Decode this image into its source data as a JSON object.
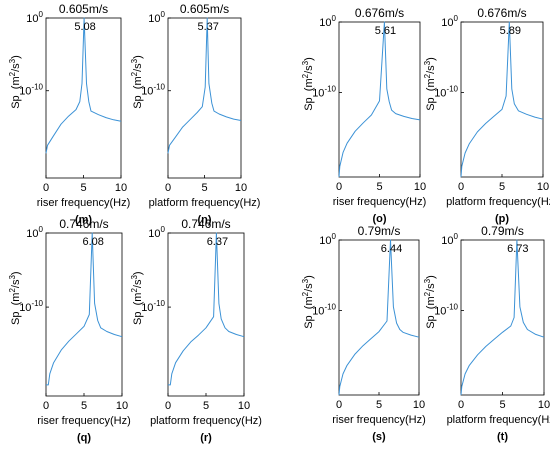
{
  "line_color": "#3c92d6",
  "ylabel_text": "Sp",
  "ylabel_unit_base": "(m",
  "ylabel_unit_num_sup": "2",
  "ylabel_unit_mid": "/s",
  "ylabel_unit_den_sup": "3",
  "ylabel_unit_close": ")",
  "chart_data": [
    {
      "panel": "m",
      "type": "line",
      "title": "0.605m/s",
      "peak_label": "5.08",
      "peak_x": 5.08,
      "xlabel": "riser frequency(Hz)",
      "caption": "(m)",
      "xlim": [
        0,
        10
      ],
      "xticks": [
        "0",
        "5",
        "10"
      ],
      "ylim_log10": [
        -22,
        0
      ],
      "yticks": [
        {
          "exp": 0,
          "base": "10",
          "sup": "0"
        },
        {
          "exp": -10,
          "base": "10",
          "sup": "-10"
        }
      ],
      "y_scale": "log",
      "x": [
        0,
        0.2,
        1,
        2,
        3,
        4,
        4.5,
        4.8,
        5.08,
        5.4,
        5.7,
        6,
        7,
        8,
        9,
        10
      ],
      "y_log10": [
        -18.6,
        -17.5,
        -16.2,
        -14.6,
        -13.5,
        -12.6,
        -11.5,
        -9,
        0,
        -9,
        -11.5,
        -12.8,
        -13.3,
        -13.7,
        -14,
        -14.2
      ]
    },
    {
      "panel": "n",
      "type": "line",
      "title": "0.605m/s",
      "peak_label": "5.37",
      "peak_x": 5.37,
      "xlabel": "platform frequency(Hz)",
      "caption": "(n)",
      "xlim": [
        0,
        10
      ],
      "xticks": [
        "0",
        "5",
        "10"
      ],
      "ylim_log10": [
        -22,
        0
      ],
      "yticks": [
        {
          "exp": 0,
          "base": "10",
          "sup": "0"
        },
        {
          "exp": -10,
          "base": "10",
          "sup": "-10"
        }
      ],
      "y_scale": "log",
      "x": [
        0,
        0.2,
        1,
        2,
        3,
        4,
        4.7,
        5.1,
        5.37,
        5.6,
        6,
        6.3,
        7,
        8,
        9,
        10
      ],
      "y_log10": [
        -18.6,
        -17.5,
        -16.4,
        -15,
        -14,
        -13,
        -12.2,
        -9.5,
        0,
        -9,
        -11.7,
        -12.8,
        -13.2,
        -13.6,
        -13.9,
        -14.1
      ]
    },
    {
      "panel": "o",
      "type": "line",
      "title": "0.676m/s",
      "peak_label": "5.61",
      "peak_x": 5.61,
      "xlabel": "riser frequency(Hz)",
      "caption": "(o)",
      "xlim": [
        0,
        10
      ],
      "xticks": [
        "0",
        "5",
        "10"
      ],
      "ylim_log10": [
        -22,
        0
      ],
      "yticks": [
        {
          "exp": 0,
          "base": "10",
          "sup": "0"
        },
        {
          "exp": -10,
          "base": "10",
          "sup": "-10"
        }
      ],
      "y_scale": "log",
      "x": [
        0,
        0.1,
        0.5,
        1,
        2,
        3,
        4,
        5,
        5.61,
        5.9,
        6.2,
        6.5,
        7,
        8,
        9,
        10
      ],
      "y_log10": [
        -22,
        -20.5,
        -18.5,
        -17.2,
        -15.5,
        -14.3,
        -13.2,
        -11.2,
        0,
        -9.5,
        -11.3,
        -12.5,
        -13,
        -13.4,
        -13.7,
        -13.9
      ]
    },
    {
      "panel": "p",
      "type": "line",
      "title": "0.676m/s",
      "peak_label": "5.89",
      "peak_x": 5.89,
      "xlabel": "platform frequency(Hz)",
      "caption": "(p)",
      "xlim": [
        0,
        10
      ],
      "xticks": [
        "0",
        "5",
        "10"
      ],
      "ylim_log10": [
        -22,
        0
      ],
      "yticks": [
        {
          "exp": 0,
          "base": "10",
          "sup": "0"
        },
        {
          "exp": -10,
          "base": "10",
          "sup": "-10"
        }
      ],
      "y_scale": "log",
      "x": [
        0,
        0.1,
        0.5,
        1,
        2,
        3,
        4,
        5,
        5.5,
        5.89,
        6.2,
        6.5,
        7,
        8,
        9,
        10
      ],
      "y_log10": [
        -22,
        -20.5,
        -18.6,
        -17.3,
        -15.6,
        -14.4,
        -13.4,
        -12.4,
        -10.5,
        0,
        -9.5,
        -11.6,
        -12.6,
        -13.1,
        -13.5,
        -13.8
      ]
    },
    {
      "panel": "q",
      "type": "line",
      "title": "0.746m/s",
      "peak_label": "6.08",
      "peak_x": 6.08,
      "xlabel": "riser frequency(Hz)",
      "caption": "(q)",
      "xlim": [
        0,
        10
      ],
      "xticks": [
        "0",
        "5",
        "10"
      ],
      "ylim_log10": [
        -22,
        0
      ],
      "yticks": [
        {
          "exp": 0,
          "base": "10",
          "sup": "0"
        },
        {
          "exp": -10,
          "base": "10",
          "sup": "-10"
        }
      ],
      "y_scale": "log",
      "x": [
        0,
        0.3,
        0.5,
        1,
        2,
        3,
        4,
        5,
        5.7,
        6.08,
        6.4,
        6.8,
        7.2,
        8,
        9,
        10
      ],
      "y_log10": [
        -20.5,
        -20.5,
        -19,
        -17.5,
        -15.8,
        -14.6,
        -13.6,
        -12.6,
        -11,
        0,
        -9.5,
        -11.8,
        -12.8,
        -13.3,
        -13.7,
        -14
      ]
    },
    {
      "panel": "r",
      "type": "line",
      "title": "0.746m/s",
      "peak_label": "6.37",
      "peak_x": 6.37,
      "xlabel": "platform frequency(Hz)",
      "caption": "(r)",
      "xlim": [
        0,
        10
      ],
      "xticks": [
        "0",
        "5",
        "10"
      ],
      "ylim_log10": [
        -22,
        0
      ],
      "yticks": [
        {
          "exp": 0,
          "base": "10",
          "sup": "0"
        },
        {
          "exp": -10,
          "base": "10",
          "sup": "-10"
        }
      ],
      "y_scale": "log",
      "x": [
        0,
        0.3,
        0.5,
        1,
        2,
        3,
        4,
        5,
        6,
        6.37,
        6.7,
        7,
        7.5,
        8,
        9,
        10
      ],
      "y_log10": [
        -20.5,
        -20.5,
        -19,
        -17.5,
        -15.9,
        -14.7,
        -13.8,
        -12.8,
        -11.3,
        0,
        -9.5,
        -11.6,
        -12.8,
        -13.3,
        -13.7,
        -14
      ]
    },
    {
      "panel": "s",
      "type": "line",
      "title": "0.79m/s",
      "peak_label": "6.44",
      "peak_x": 6.44,
      "xlabel": "riser frequency(Hz)",
      "caption": "(s)",
      "xlim": [
        0,
        10
      ],
      "xticks": [
        "0",
        "5",
        "10"
      ],
      "ylim_log10": [
        -22,
        0
      ],
      "yticks": [
        {
          "exp": 0,
          "base": "10",
          "sup": "0"
        },
        {
          "exp": -10,
          "base": "10",
          "sup": "-10"
        }
      ],
      "y_scale": "log",
      "x": [
        0,
        0.1,
        0.5,
        1,
        2,
        3,
        4,
        5,
        6,
        6.44,
        6.8,
        7.2,
        7.6,
        8,
        9,
        10
      ],
      "y_log10": [
        -22,
        -20.8,
        -19,
        -17.8,
        -16.2,
        -15,
        -14,
        -13,
        -11.5,
        0,
        -9.5,
        -11.8,
        -12.7,
        -13.1,
        -13.5,
        -13.8
      ]
    },
    {
      "panel": "t",
      "type": "line",
      "title": "0.79m/s",
      "peak_label": "6.73",
      "peak_x": 6.73,
      "xlabel": "platform frequency(Hz)",
      "caption": "(t)",
      "xlim": [
        0,
        10
      ],
      "xticks": [
        "0",
        "5",
        "10"
      ],
      "ylim_log10": [
        -22,
        0
      ],
      "yticks": [
        {
          "exp": 0,
          "base": "10",
          "sup": "0"
        },
        {
          "exp": -10,
          "base": "10",
          "sup": "-10"
        }
      ],
      "y_scale": "log",
      "x": [
        0,
        0.1,
        0.5,
        1,
        2,
        3,
        4,
        5,
        6,
        6.4,
        6.73,
        7.1,
        7.5,
        8,
        9,
        10
      ],
      "y_log10": [
        -22,
        -20.8,
        -19,
        -17.8,
        -16.3,
        -15.1,
        -14.1,
        -13.1,
        -12.2,
        -11,
        0,
        -9.5,
        -11.7,
        -12.7,
        -13.4,
        -13.8
      ]
    }
  ]
}
